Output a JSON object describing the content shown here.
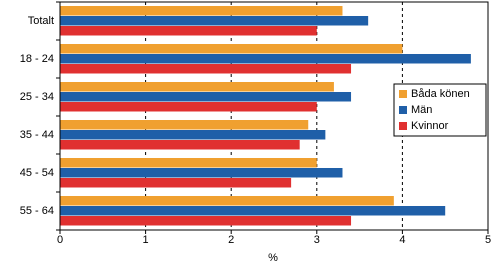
{
  "chart_data": {
    "type": "hbar",
    "categories": [
      "Totalt",
      "18 - 24",
      "25 - 34",
      "35 - 44",
      "45 - 54",
      "55 - 64"
    ],
    "series": [
      {
        "name": "Båda könen",
        "color": "#f0a030",
        "values": [
          3.3,
          4.0,
          3.2,
          2.9,
          3.0,
          3.9
        ]
      },
      {
        "name": "Män",
        "color": "#1f5fa8",
        "values": [
          3.6,
          4.8,
          3.4,
          3.1,
          3.3,
          4.5
        ]
      },
      {
        "name": "Kvinnor",
        "color": "#e03030",
        "values": [
          3.0,
          3.4,
          3.0,
          2.8,
          2.7,
          3.4
        ]
      }
    ],
    "xlabel": "%",
    "xlim": [
      0,
      5
    ],
    "xticks": [
      0,
      1,
      2,
      3,
      4,
      5
    ],
    "grid": true,
    "legend": "right"
  }
}
